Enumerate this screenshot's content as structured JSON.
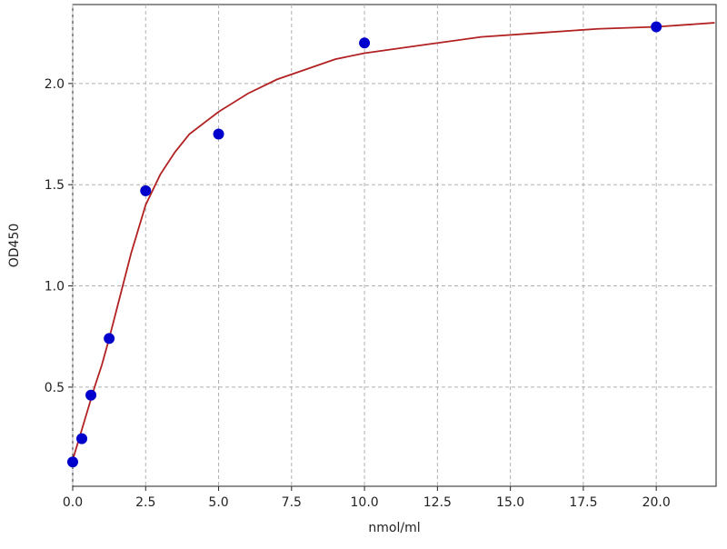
{
  "chart_data": {
    "type": "scatter",
    "x_label": "nmol/ml",
    "y_label": "OD450",
    "points": {
      "color": "#0000cc",
      "x": [
        0,
        0.3125,
        0.625,
        1.25,
        2.5,
        5,
        10,
        20
      ],
      "y": [
        0.13,
        0.245,
        0.46,
        0.74,
        1.47,
        1.75,
        2.2,
        2.28
      ]
    },
    "fit": {
      "color": "#b22222",
      "x": [
        0,
        0.25,
        0.5,
        0.75,
        1,
        1.25,
        1.5,
        2,
        2.5,
        3,
        3.5,
        4,
        5,
        6,
        7,
        8,
        9,
        10,
        12,
        14,
        16,
        18,
        20,
        22
      ],
      "y": [
        0.14,
        0.26,
        0.38,
        0.5,
        0.61,
        0.74,
        0.88,
        1.16,
        1.4,
        1.55,
        1.66,
        1.75,
        1.86,
        1.95,
        2.02,
        2.07,
        2.12,
        2.15,
        2.19,
        2.23,
        2.25,
        2.27,
        2.28,
        2.3
      ]
    },
    "xlim": [
      0,
      22.05
    ],
    "ylim": [
      0.01,
      2.39
    ],
    "xticks": [
      {
        "value": 0,
        "label": "0.0"
      },
      2.5,
      {
        "value": 5,
        "label": "5.0"
      },
      7.5,
      {
        "value": 10,
        "label": "10.0"
      },
      12.5,
      {
        "value": 15,
        "label": "15.0"
      },
      17.5,
      {
        "value": 20,
        "label": "20.0"
      }
    ],
    "yticks": [
      0.5,
      {
        "value": 1,
        "label": "1.0"
      },
      1.5,
      {
        "value": 2,
        "label": "2.0"
      }
    ],
    "grid": true
  }
}
